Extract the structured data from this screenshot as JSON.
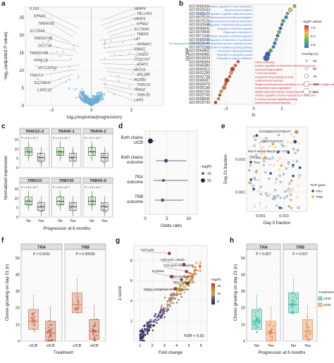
{
  "panel_a": {
    "letter": "a",
    "xlabel": "log₂(response/progression)",
    "ylabel": "−log₁₀(adjusted P value)",
    "xticks": [
      "−2",
      "0",
      "2"
    ],
    "yticks": [
      "0",
      "5",
      "10",
      "15",
      "20",
      "25"
    ],
    "genes_left": [
      "IL1R2",
      "KPNA5",
      "TMEM156",
      "SLC26A8",
      "TMEM176B",
      "GCLT1B",
      "TMEM176A",
      "PPP1CB",
      "MTCO2P12",
      "TRAV19",
      "SLC26A11",
      "LRRC31"
    ],
    "genes_right": [
      "VAMP4",
      "TBL1XR1",
      "HIRIP3",
      "KPNA2",
      "SLC16A4",
      "TMED5",
      "LAT",
      "HIPBAP1",
      "RBM27",
      "CASD1",
      "CCDC107",
      "ADAT3",
      "MED16",
      "ARL2BP",
      "HOXB3",
      "TRBV13",
      "TRAV2",
      "TRBV30",
      "LAIR1"
    ]
  },
  "panel_b": {
    "letter": "b",
    "ylabel": "GOBP",
    "xlabel": "fc",
    "xticks": [
      "−2",
      "0",
      "2"
    ],
    "go_ids": [
      "GO:0050434",
      "GO:0032543",
      "GO:0042177",
      "GO:0070125",
      "GO:0070126",
      "GO:0032648",
      "GO:0034341",
      "GO:0070555",
      "GO:0071346",
      "GO:0032735",
      "GO:0031146",
      "GO:0070102",
      "GO:0050852",
      "GO:0042981",
      "GO:0010033",
      "GO:0006364",
      "GO:0045080",
      "GO:0043312",
      "GO:0031295",
      "GO:0042738",
      "GO:0045087",
      "GO:0002479",
      "GO:0030198",
      "GO:0002755",
      "GO:0032760",
      "GO:0038095",
      "GO:0019730"
    ],
    "terms": [
      "Positive regulation of viral transcription",
      "Mitochondrial translation",
      "Negative regulation of protein catabolic process",
      "Mitochondrial translational elongation",
      "Mitochondrial translational termination",
      "Regulation of interferon-beta production",
      "Response to interferon-gamma",
      "Response to interleukin-1",
      "Cellular response to interferon-gamma",
      "Positive regulation of interleukin-12 production",
      "SCF-dependent proteasomal ubiquitin-dependent protein catabolic process",
      "Interleukin-6-mediated signaling pathway",
      "T cell receptor signaling pathway",
      "Regulation of apoptotic process",
      "Response to organic substance",
      "rRNA processing",
      "Positive regulation of chemokine biosynthetic process",
      "Neutrophil degranulation",
      "T cell costimulation",
      "Exogenous drug catabolic process",
      "Innate immune response",
      "Antigen processing and presentation of exogenous peptide antigen via MHC class I, TAP-dependent",
      "Extracellular matrix organization",
      "MyD88-dependent toll-like receptor signaling pathway",
      "Positive regulation of tumor necrosis factor production",
      "Fc-epsilon receptor signaling pathway",
      "Antimicrobial humoral response"
    ],
    "legend_color_title": "−log(P value)",
    "legend_color_ticks": [
      "7.5",
      "5.0",
      "2.5"
    ],
    "legend_size_title": "Overlap (n)",
    "legend_size_ticks": [
      "25",
      "50",
      "75",
      "100",
      "125"
    ],
    "colors": {
      "up": "#3b7dd8",
      "down": "#d62728"
    }
  },
  "panel_c": {
    "letter": "c",
    "ylabel": "Normalized expression",
    "xlabel": "Progression at 6 months",
    "xticks": [
      "No",
      "Yes"
    ],
    "genes": [
      {
        "name": "TRAV12–2",
        "p": "P = 1.6 × 10⁻⁶"
      },
      {
        "name": "TRAV8–1",
        "p": "P = 1.4 × 10⁻⁶"
      },
      {
        "name": "TRAV9–2",
        "p": "P = 4.7 × 10⁻⁴"
      },
      {
        "name": "TRBV13",
        "p": "P = 1.6 × 10⁻³"
      },
      {
        "name": "TRBV30",
        "p": "P = 4.4 × 10⁻⁸"
      },
      {
        "name": "TRBV6–6",
        "p": "P = 4.3 × 10⁻³"
      }
    ],
    "yticks_top": [
      "0",
      "5",
      "10",
      "15"
    ],
    "yticks_bottom": [
      "0",
      "5",
      "10",
      "15"
    ]
  },
  "panel_d": {
    "letter": "d",
    "xlabel": "Odds ratio",
    "xticks": [
      "0",
      "5",
      "10"
    ],
    "rows": [
      {
        "label": "Both chains cICB",
        "italic": false
      },
      {
        "label": "Both chains outcome",
        "italic": false
      },
      {
        "label": "TRA outcome",
        "italic": true
      },
      {
        "label": "TRB outcome",
        "italic": true
      }
    ],
    "legend_title": "−log(P)",
    "legend_ticks": [
      "10",
      "20"
    ]
  },
  "panel_e": {
    "letter": "e",
    "xlabel": "Day 0 fraction",
    "ylabel": "Day 21 fraction",
    "xticks": [
      "0.001",
      "0.010"
    ],
    "yticks": [
      "0.001",
      "0.010"
    ],
    "clone_1": "CASSQDEVAGTGELFF",
    "clone_2": "CAVETGGFKTIF",
    "stat_line": "Day 0 versus day 21, P < 0.05",
    "legend_false": "False",
    "legend_true": "True",
    "legend_gene_title": "TCR gene",
    "legend_tra": "TRA",
    "legend_trb": "TRB",
    "colors": {
      "tra": "#1f4e79",
      "trb": "#e8a33d"
    }
  },
  "panel_f": {
    "letter": "f",
    "ylabel": "Clones growing on day 21 (n)",
    "xlabel": "Treatment",
    "facets": [
      {
        "name": "TRA",
        "p": "P = 0.0011"
      },
      {
        "name": "TRB",
        "p": "P = 0.00035"
      }
    ],
    "xticks": [
      "cICB",
      "sICB"
    ],
    "yticks": [
      "0",
      "10",
      "20",
      "30",
      "40",
      "50"
    ]
  },
  "panel_g": {
    "letter": "g",
    "xlabel": "Fold change",
    "ylabel": "z-score",
    "xticks": [
      "1",
      "2",
      "3",
      "4",
      "5",
      "6"
    ],
    "yticks": [
      "2",
      "4",
      "6",
      "8"
    ],
    "labels": [
      "Cell cycle",
      "Cell cycle, mitotic",
      "Cell cycle checkpoints",
      "M phase",
      "G2/M checkpoints",
      "DNA replication",
      "Mitotic metaphase and anaphase"
    ],
    "fdr": "FDR < 0.01",
    "legend_title": "−log(P)",
    "legend_ticks": [
      "15",
      "10",
      "5"
    ]
  },
  "panel_h": {
    "letter": "h",
    "ylabel": "Clones growing on day 21 (n)",
    "xlabel": "Progression at 6 months",
    "facets": [
      {
        "name": "TRA",
        "p": "P = 0.057"
      },
      {
        "name": "TRB",
        "p": "P = 0.037"
      }
    ],
    "xticks": [
      "No",
      "Yes"
    ],
    "yticks": [
      "0",
      "10",
      "20",
      "30",
      "40",
      "50"
    ],
    "legend_title": "Treatment",
    "legend_items": [
      "cICB",
      "sICB"
    ],
    "colors": {
      "cicb": "#2bb39a",
      "sicb": "#e8823d"
    }
  }
}
